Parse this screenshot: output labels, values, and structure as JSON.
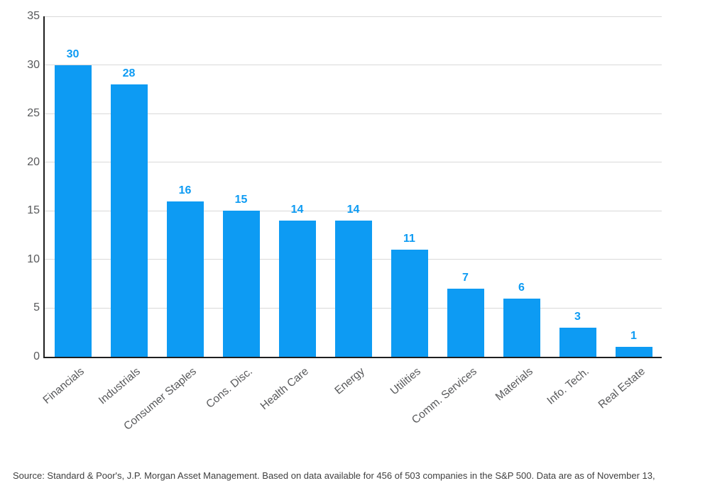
{
  "chart_data": {
    "type": "bar",
    "title": "",
    "xlabel": "",
    "ylabel": "",
    "categories": [
      "Financials",
      "Industrials",
      "Consumer Staples",
      "Cons. Disc.",
      "Health Care",
      "Energy",
      "Utilities",
      "Comm. Services",
      "Materials",
      "Info. Tech.",
      "Real Estate"
    ],
    "values": [
      30,
      28,
      16,
      15,
      14,
      14,
      11,
      7,
      6,
      3,
      1
    ],
    "yticks": [
      0,
      5,
      10,
      15,
      20,
      25,
      30,
      35
    ],
    "ylim": [
      0,
      35
    ],
    "grid": "horizontal",
    "legend": "none",
    "value_labels": "above-bars",
    "x_label_rotation_deg": -40,
    "colors": {
      "bar": "#0d9bf3",
      "value_label": "#0d9bf3",
      "tick_label": "#58595b",
      "gridline": "#d9d9d9",
      "axis_line": "#1f1f1f"
    }
  },
  "footer": {
    "source_text": "Source: Standard & Poor's, J.P. Morgan Asset Management. Based on data available for 456 of 503 companies in the S&P 500. Data are as of November 13,"
  }
}
